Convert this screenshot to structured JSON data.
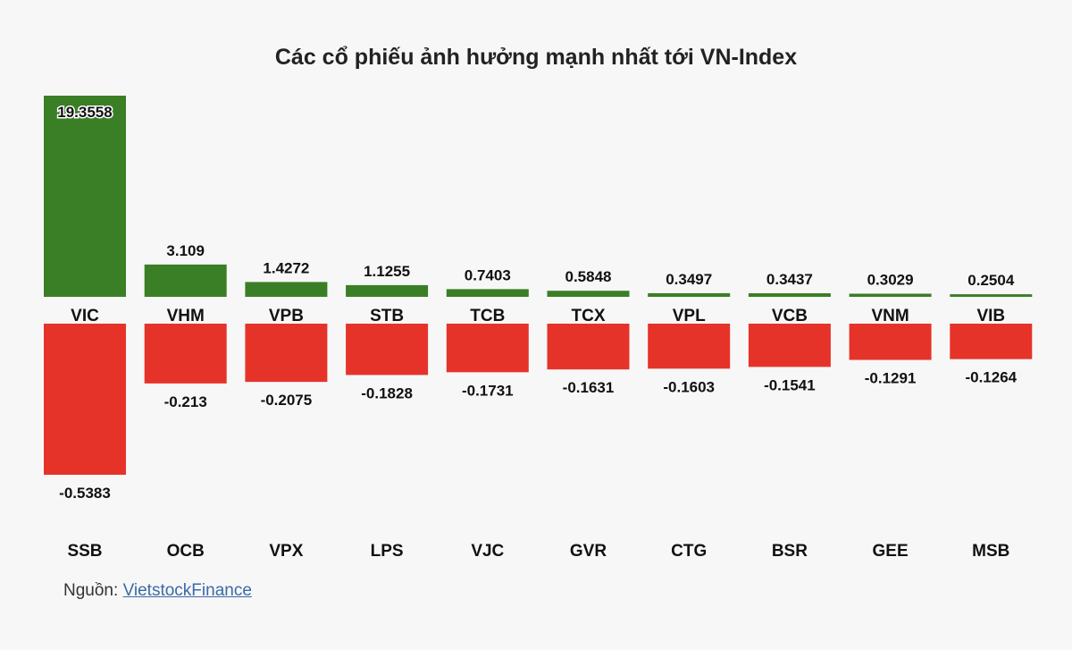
{
  "chart_data": {
    "type": "bar",
    "title": "Các cổ phiếu ảnh hưởng mạnh nhất tới VN-Index",
    "colors": {
      "positive": "#3a7f25",
      "negative": "#e6332a"
    },
    "positive": {
      "categories": [
        "VIC",
        "VHM",
        "VPB",
        "STB",
        "TCB",
        "TCX",
        "VPL",
        "VCB",
        "VNM",
        "VIB"
      ],
      "values": [
        19.3558,
        3.109,
        1.4272,
        1.1255,
        0.7403,
        0.5848,
        0.3497,
        0.3437,
        0.3029,
        0.2504
      ],
      "labels": [
        "19.3558",
        "3.109",
        "1.4272",
        "1.1255",
        "0.7403",
        "0.5848",
        "0.3497",
        "0.3437",
        "0.3029",
        "0.2504"
      ]
    },
    "negative": {
      "categories": [
        "SSB",
        "OCB",
        "VPX",
        "LPS",
        "VJC",
        "GVR",
        "CTG",
        "BSR",
        "GEE",
        "MSB"
      ],
      "values": [
        -0.5383,
        -0.213,
        -0.2075,
        -0.1828,
        -0.1731,
        -0.1631,
        -0.1603,
        -0.1541,
        -0.1291,
        -0.1264
      ],
      "labels": [
        "-0.5383",
        "-0.213",
        "-0.2075",
        "-0.1828",
        "-0.1731",
        "-0.1631",
        "-0.1603",
        "-0.1541",
        "-0.1291",
        "-0.1264"
      ]
    }
  },
  "source": {
    "prefix": "Nguồn:",
    "link_text": "VietstockFinance"
  }
}
